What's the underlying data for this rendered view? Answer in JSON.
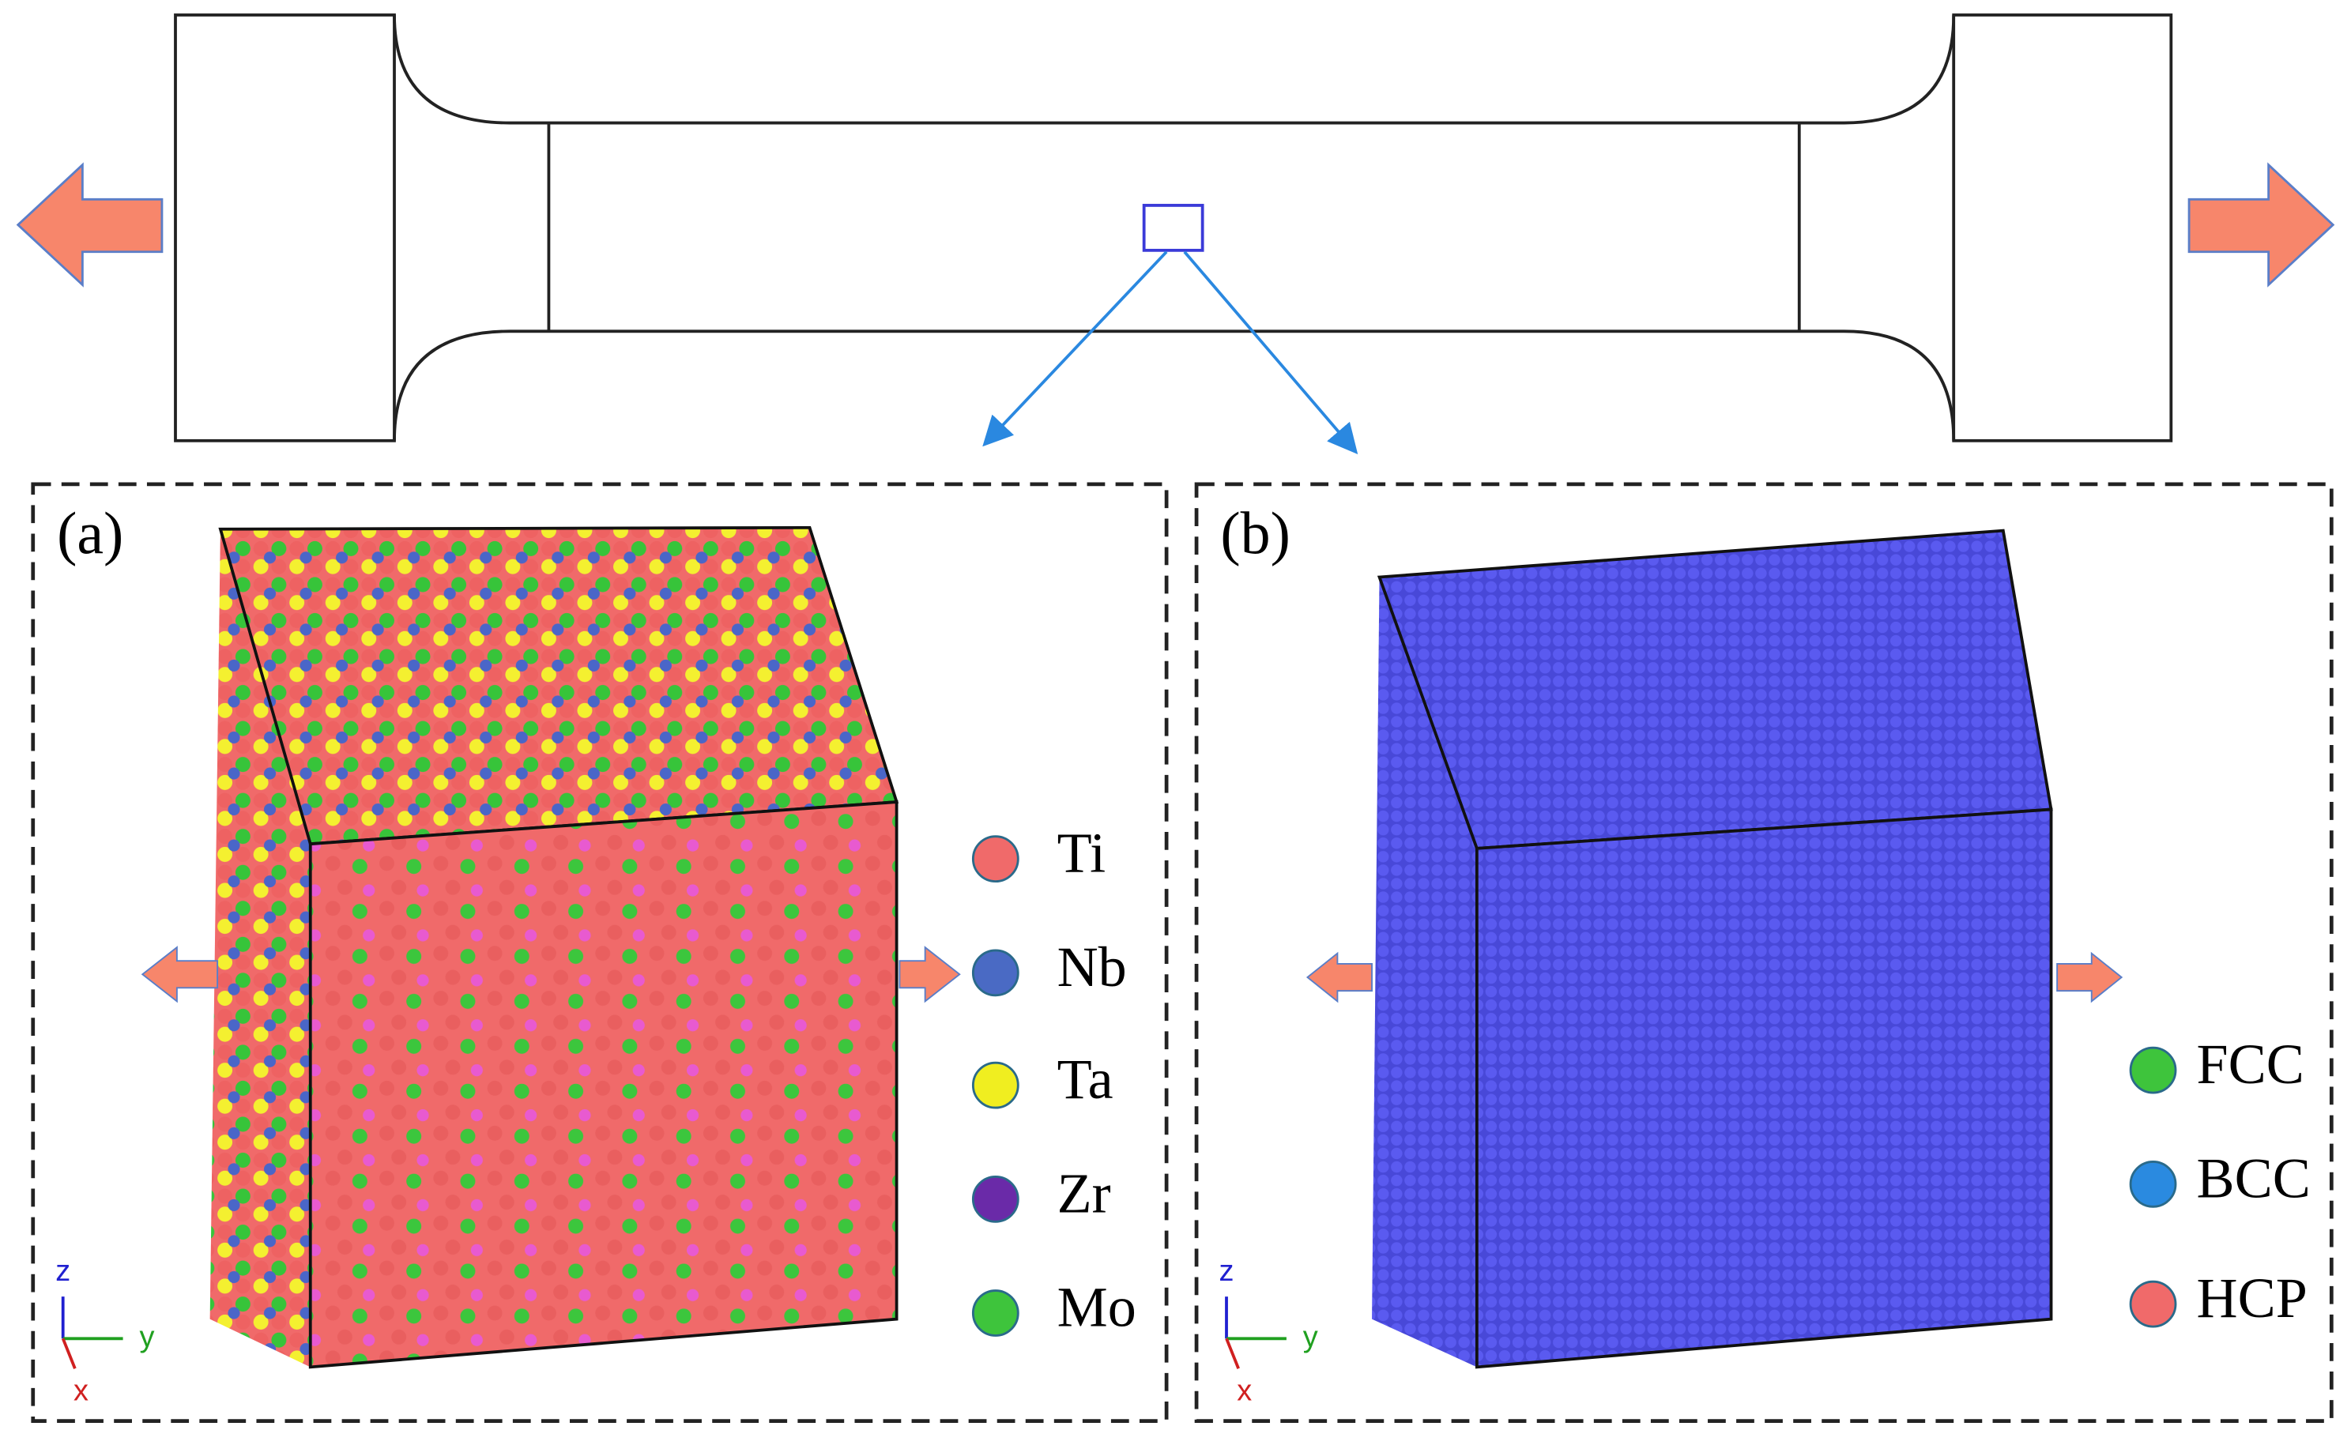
{
  "panels": [
    {
      "label": "(a)",
      "legend": [
        "Ti",
        "Nb",
        "Ta",
        "Zr",
        "Mo"
      ],
      "axes": [
        "z",
        "y",
        "x"
      ]
    },
    {
      "label": "(b)",
      "legend": [
        "FCC",
        "BCC",
        "HCP"
      ],
      "axes": [
        "z",
        "y",
        "x"
      ]
    }
  ]
}
